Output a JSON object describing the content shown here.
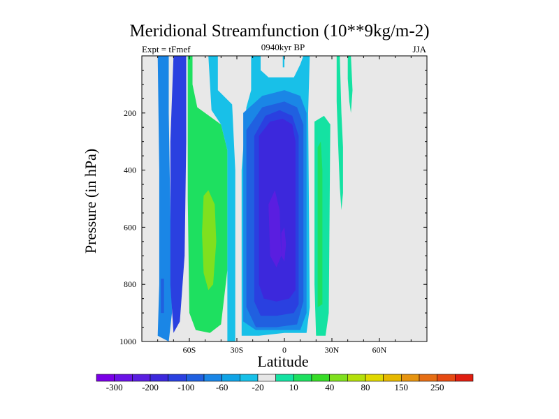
{
  "chart_data": {
    "type": "heatmap",
    "title": "Meridional Streamfunction (10**9kg/m-2)",
    "subtitle": "0940kyr BP",
    "left_annotation": "Expt = tFmef",
    "right_annotation": "JJA",
    "xlabel": "Latitude",
    "ylabel": "Pressure (in hPa)",
    "xlim": [
      -90,
      90
    ],
    "ylim": [
      0,
      1000
    ],
    "y_inverted": true,
    "x_ticks": [
      {
        "value": -60,
        "label": "60S"
      },
      {
        "value": -30,
        "label": "30S"
      },
      {
        "value": 0,
        "label": "0"
      },
      {
        "value": 30,
        "label": "30N"
      },
      {
        "value": 60,
        "label": "60N"
      }
    ],
    "y_ticks": [
      {
        "value": 200,
        "label": "200"
      },
      {
        "value": 400,
        "label": "400"
      },
      {
        "value": 600,
        "label": "600"
      },
      {
        "value": 800,
        "label": "800"
      },
      {
        "value": 1000,
        "label": "1000"
      }
    ],
    "missing_color": "#e8e8e8",
    "colorbar": {
      "colors": [
        "#7a00e6",
        "#6a12e6",
        "#5a1ee0",
        "#3c28dc",
        "#2a40e0",
        "#2060e0",
        "#1a86e6",
        "#10a4e6",
        "#18c0e8",
        "#e6e6e6",
        "#14e2a2",
        "#1ee060",
        "#38dc28",
        "#80e01e",
        "#b4e00a",
        "#e0d800",
        "#e6b800",
        "#e69410",
        "#e66e14",
        "#e64a12",
        "#e01e10"
      ],
      "labels": [
        {
          "after_index": 0,
          "text": "-300"
        },
        {
          "after_index": 2,
          "text": "-200"
        },
        {
          "after_index": 4,
          "text": "-100"
        },
        {
          "after_index": 6,
          "text": "-60"
        },
        {
          "after_index": 8,
          "text": "-20"
        },
        {
          "after_index": 10,
          "text": "10"
        },
        {
          "after_index": 12,
          "text": "40"
        },
        {
          "after_index": 14,
          "text": "80"
        },
        {
          "after_index": 16,
          "text": "150"
        },
        {
          "after_index": 18,
          "text": "250"
        }
      ]
    },
    "contour_regions": [
      {
        "level": "-60",
        "color": "#1a86e6",
        "points": [
          [
            -80,
            0
          ],
          [
            -73,
            0
          ],
          [
            -73,
            200
          ],
          [
            -71,
            900
          ],
          [
            -73,
            1000
          ],
          [
            -80,
            980
          ],
          [
            -79,
            800
          ],
          [
            -79,
            400
          ]
        ]
      },
      {
        "level": "-100",
        "color": "#2060e0",
        "points": [
          [
            -78,
            780
          ],
          [
            -76,
            780
          ],
          [
            -76,
            900
          ],
          [
            -78,
            900
          ]
        ]
      },
      {
        "level": "-100",
        "color": "#2a40e0",
        "points": [
          [
            -70,
            0
          ],
          [
            -62,
            0
          ],
          [
            -62,
            300
          ],
          [
            -63,
            700
          ],
          [
            -66,
            930
          ],
          [
            -70,
            970
          ],
          [
            -72,
            800
          ],
          [
            -72,
            300
          ]
        ]
      },
      {
        "level": "40",
        "color": "#1ee060",
        "points": [
          [
            -61,
            0
          ],
          [
            -58,
            0
          ],
          [
            -58,
            100
          ],
          [
            -55,
            180
          ],
          [
            -40,
            240
          ],
          [
            -36,
            330
          ],
          [
            -36,
            750
          ],
          [
            -40,
            940
          ],
          [
            -47,
            970
          ],
          [
            -56,
            960
          ],
          [
            -60,
            900
          ],
          [
            -61,
            500
          ]
        ]
      },
      {
        "level": "80",
        "color": "#80e01e",
        "points": [
          [
            -51,
            490
          ],
          [
            -48,
            470
          ],
          [
            -44,
            520
          ],
          [
            -43,
            650
          ],
          [
            -45,
            800
          ],
          [
            -48,
            820
          ],
          [
            -51,
            760
          ],
          [
            -52,
            620
          ]
        ]
      },
      {
        "level": "-20",
        "color": "#18c0e8",
        "points": [
          [
            -48,
            0
          ],
          [
            -42,
            0
          ],
          [
            -42,
            120
          ],
          [
            -33,
            170
          ],
          [
            -31,
            400
          ],
          [
            -31,
            1000
          ],
          [
            -36,
            1000
          ],
          [
            -36,
            330
          ],
          [
            -40,
            240
          ],
          [
            -46,
            190
          ]
        ]
      },
      {
        "level": "-20",
        "color": "#18c0e8",
        "points": [
          [
            -21,
            0
          ],
          [
            -15,
            0
          ],
          [
            -15,
            50
          ],
          [
            -10,
            75
          ],
          [
            6,
            75
          ],
          [
            10,
            30
          ],
          [
            12,
            0
          ],
          [
            16,
            0
          ],
          [
            15,
            200
          ],
          [
            16,
            880
          ],
          [
            14,
            970
          ],
          [
            0,
            970
          ],
          [
            -16,
            980
          ],
          [
            -27,
            980
          ],
          [
            -27,
            400
          ],
          [
            -24,
            180
          ],
          [
            -21,
            120
          ]
        ]
      },
      {
        "level": "-20",
        "color": "#18c0e8",
        "points": [
          [
            -1,
            0
          ],
          [
            0,
            0
          ],
          [
            0,
            40
          ],
          [
            -1,
            40
          ]
        ]
      },
      {
        "level": "-60",
        "color": "#1a86e6",
        "points": [
          [
            -26,
            200
          ],
          [
            -14,
            140
          ],
          [
            0,
            120
          ],
          [
            10,
            140
          ],
          [
            14,
            200
          ],
          [
            14,
            900
          ],
          [
            10,
            960
          ],
          [
            -5,
            960
          ],
          [
            -18,
            960
          ],
          [
            -26,
            930
          ]
        ]
      },
      {
        "level": "-100",
        "color": "#2060e0",
        "points": [
          [
            -24,
            260
          ],
          [
            -14,
            180
          ],
          [
            0,
            160
          ],
          [
            8,
            180
          ],
          [
            12,
            240
          ],
          [
            12,
            860
          ],
          [
            8,
            940
          ],
          [
            -5,
            950
          ],
          [
            -18,
            950
          ],
          [
            -24,
            880
          ]
        ]
      },
      {
        "level": "-200",
        "color": "#2a40e0",
        "points": [
          [
            -19,
            280
          ],
          [
            -12,
            210
          ],
          [
            -3,
            190
          ],
          [
            5,
            210
          ],
          [
            9,
            280
          ],
          [
            9,
            870
          ],
          [
            6,
            900
          ],
          [
            -5,
            910
          ],
          [
            -15,
            910
          ],
          [
            -19,
            860
          ]
        ]
      },
      {
        "level": "-300",
        "color": "#3c28dc",
        "points": [
          [
            -16,
            280
          ],
          [
            -9,
            230
          ],
          [
            -1,
            220
          ],
          [
            5,
            240
          ],
          [
            7,
            300
          ],
          [
            7,
            820
          ],
          [
            3,
            850
          ],
          [
            -5,
            860
          ],
          [
            -13,
            850
          ],
          [
            -16,
            800
          ]
        ]
      },
      {
        "level": "-300",
        "color": "#5a1ee0",
        "points": [
          [
            -10,
            520
          ],
          [
            -6,
            470
          ],
          [
            -3,
            540
          ],
          [
            -2,
            700
          ],
          [
            -5,
            740
          ],
          [
            -9,
            700
          ]
        ]
      },
      {
        "level": "-300",
        "color": "#5a1ee0",
        "points": [
          [
            -2,
            620
          ],
          [
            0,
            600
          ],
          [
            1,
            660
          ],
          [
            0,
            720
          ],
          [
            -2,
            700
          ]
        ]
      },
      {
        "level": "10",
        "color": "#14e2a2",
        "points": [
          [
            19,
            230
          ],
          [
            25,
            210
          ],
          [
            29,
            240
          ],
          [
            28,
            900
          ],
          [
            26,
            980
          ],
          [
            20,
            980
          ],
          [
            19,
            800
          ]
        ]
      },
      {
        "level": "40",
        "color": "#1ee060",
        "points": [
          [
            21,
            320
          ],
          [
            23,
            300
          ],
          [
            24,
            400
          ],
          [
            24,
            870
          ],
          [
            21,
            880
          ],
          [
            21,
            500
          ]
        ]
      },
      {
        "level": "10",
        "color": "#14e2a2",
        "points": [
          [
            33,
            0
          ],
          [
            35,
            0
          ],
          [
            36,
            200
          ],
          [
            37,
            320
          ],
          [
            37,
            480
          ],
          [
            36,
            540
          ],
          [
            35,
            460
          ],
          [
            34,
            320
          ],
          [
            33,
            160
          ]
        ]
      },
      {
        "level": "10",
        "color": "#14e2a2",
        "points": [
          [
            40,
            0
          ],
          [
            42,
            0
          ],
          [
            43,
            120
          ],
          [
            42,
            200
          ],
          [
            41,
            160
          ],
          [
            40,
            80
          ]
        ]
      }
    ]
  }
}
